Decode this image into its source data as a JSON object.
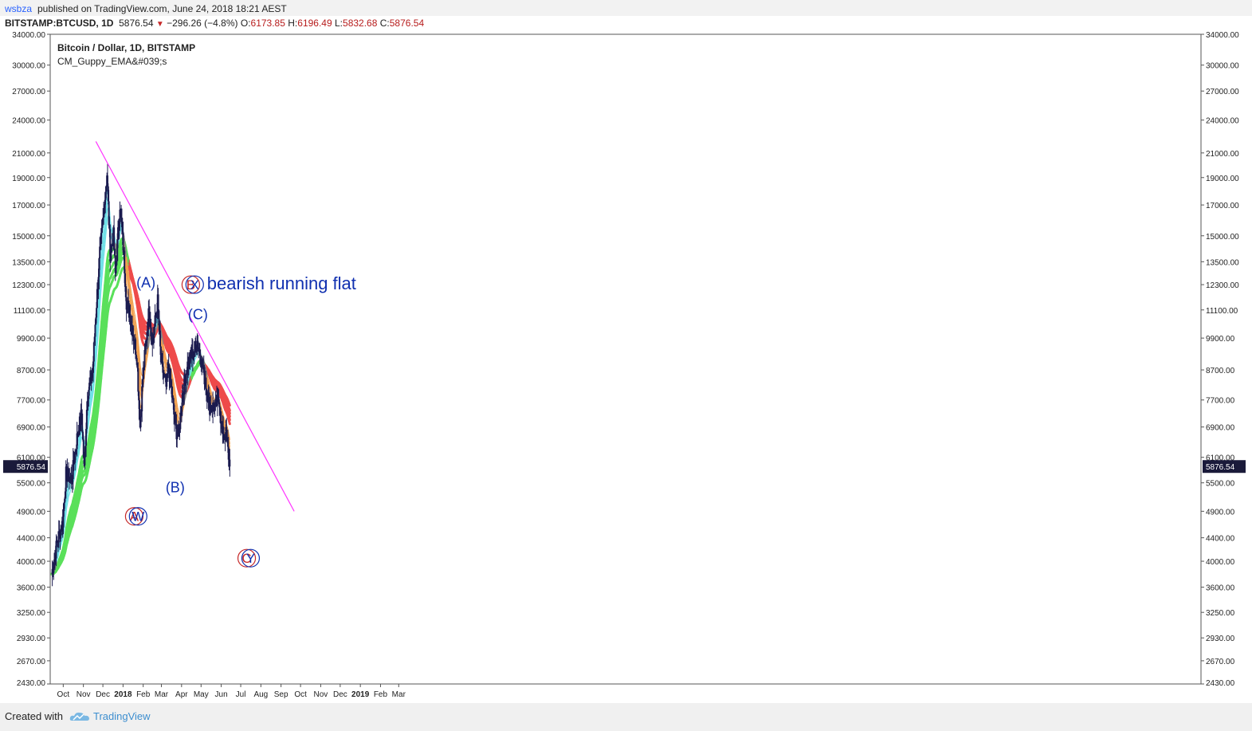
{
  "header": {
    "author": "wsbza",
    "published": "published on TradingView.com, June 24, 2018 18:21 AEST",
    "symbol": "BITSTAMP:BTCUSD, 1D",
    "last": "5876.54",
    "change": "−296.26 (−4.8%)",
    "open_label": "O:",
    "open": "6173.85",
    "high_label": "H:",
    "high": "6196.49",
    "low_label": "L:",
    "low": "5832.68",
    "close_label": "C:",
    "close": "5876.54"
  },
  "footer": {
    "created": "Created with",
    "brand": "TradingView"
  },
  "colors": {
    "trendline": "#ff33ff",
    "candle": "#1a1a4e",
    "ema_green": "#5ae05a",
    "ema_cyan": "#6fe0e8",
    "ema_red": "#ee4b4b",
    "ema_gray": "#888888",
    "ema_orange": "#f0a050",
    "label_blue": "#1030b0",
    "label_red": "#c62828",
    "price_tag": "#1a1a3a"
  },
  "chart_data": {
    "type": "candlestick",
    "title": "Bitcoin / Dollar, 1D, BITSTAMP",
    "indicator": "CM_Guppy_EMA&#039;s",
    "y_scale": "log",
    "ylim": [
      2430,
      34000
    ],
    "y_ticks": [
      "34000.00",
      "30000.00",
      "27000.00",
      "24000.00",
      "21000.00",
      "19000.00",
      "17000.00",
      "15000.00",
      "13500.00",
      "12300.00",
      "11100.00",
      "9900.00",
      "8700.00",
      "7700.00",
      "6900.00",
      "6100.00",
      "5500.00",
      "4900.00",
      "4400.00",
      "4000.00",
      "3600.00",
      "3250.00",
      "2930.00",
      "2670.00",
      "2430.00"
    ],
    "y_bottom_partial": "2430.00",
    "x_ticks": [
      {
        "label": "Oct",
        "bold": false
      },
      {
        "label": "Nov",
        "bold": false
      },
      {
        "label": "Dec",
        "bold": false
      },
      {
        "label": "2018",
        "bold": true
      },
      {
        "label": "Feb",
        "bold": false
      },
      {
        "label": "Mar",
        "bold": false
      },
      {
        "label": "Apr",
        "bold": false
      },
      {
        "label": "May",
        "bold": false
      },
      {
        "label": "Jun",
        "bold": false
      },
      {
        "label": "Jul",
        "bold": false
      },
      {
        "label": "Aug",
        "bold": false
      },
      {
        "label": "Sep",
        "bold": false
      },
      {
        "label": "Oct",
        "bold": false
      },
      {
        "label": "Nov",
        "bold": false
      },
      {
        "label": "Dec",
        "bold": false
      },
      {
        "label": "2019",
        "bold": true
      },
      {
        "label": "Feb",
        "bold": false
      },
      {
        "label": "Mar",
        "bold": false
      }
    ],
    "last_price_tag": "5876.54",
    "price_path": [
      [
        "2017-09-23",
        3800
      ],
      [
        "2017-10-01",
        4300
      ],
      [
        "2017-10-10",
        4700
      ],
      [
        "2017-10-15",
        5700
      ],
      [
        "2017-10-24",
        5600
      ],
      [
        "2017-11-01",
        6600
      ],
      [
        "2017-11-08",
        7300
      ],
      [
        "2017-11-12",
        5800
      ],
      [
        "2017-11-17",
        7900
      ],
      [
        "2017-11-25",
        8600
      ],
      [
        "2017-11-29",
        10500
      ],
      [
        "2017-12-06",
        14000
      ],
      [
        "2017-12-10",
        15500
      ],
      [
        "2017-12-17",
        19300
      ],
      [
        "2017-12-22",
        14000
      ],
      [
        "2017-12-27",
        15000
      ],
      [
        "2017-12-30",
        12800
      ],
      [
        "2018-01-06",
        17100
      ],
      [
        "2018-01-12",
        13800
      ],
      [
        "2018-01-16",
        11500
      ],
      [
        "2018-01-22",
        10800
      ],
      [
        "2018-02-01",
        9200
      ],
      [
        "2018-02-06",
        6900
      ],
      [
        "2018-02-10",
        8400
      ],
      [
        "2018-02-20",
        11200
      ],
      [
        "2018-02-25",
        9700
      ],
      [
        "2018-03-05",
        11500
      ],
      [
        "2018-03-10",
        9000
      ],
      [
        "2018-03-18",
        8100
      ],
      [
        "2018-03-22",
        8900
      ],
      [
        "2018-04-01",
        6900
      ],
      [
        "2018-04-06",
        6600
      ],
      [
        "2018-04-12",
        7900
      ],
      [
        "2018-04-20",
        8900
      ],
      [
        "2018-04-28",
        9300
      ],
      [
        "2018-05-05",
        9800
      ],
      [
        "2018-05-10",
        9200
      ],
      [
        "2018-05-18",
        8200
      ],
      [
        "2018-05-24",
        7500
      ],
      [
        "2018-06-01",
        7500
      ],
      [
        "2018-06-08",
        7700
      ],
      [
        "2018-06-12",
        6700
      ],
      [
        "2018-06-18",
        6700
      ],
      [
        "2018-06-24",
        5877
      ]
    ],
    "trendline": [
      [
        "2017-11-30",
        22000
      ],
      [
        "2018-10-01",
        4900
      ]
    ],
    "annotations": [
      {
        "text": "(A)",
        "date": "2018-02-15",
        "price": 12400,
        "color": "blue"
      },
      {
        "text": "(B)",
        "date": "2018-04-01",
        "price": 5400,
        "color": "blue"
      },
      {
        "text": "(C)",
        "date": "2018-05-06",
        "price": 10900,
        "color": "blue"
      },
      {
        "circled": "A",
        "date": "2018-01-28",
        "price": 4800,
        "color": "red"
      },
      {
        "circled": "W",
        "date": "2018-02-03",
        "price": 4800,
        "color": "blue"
      },
      {
        "circled": "B",
        "date": "2018-04-25",
        "price": 12300,
        "color": "red"
      },
      {
        "circled": "X",
        "date": "2018-05-01",
        "price": 12300,
        "color": "blue"
      },
      {
        "text": "bearish running flat",
        "date": "2018-05-20",
        "price": 12300,
        "color": "blue"
      },
      {
        "circled": "C",
        "date": "2018-07-20",
        "price": 4050,
        "color": "red"
      },
      {
        "circled": "Y",
        "date": "2018-07-26",
        "price": 4050,
        "color": "blue"
      }
    ]
  }
}
